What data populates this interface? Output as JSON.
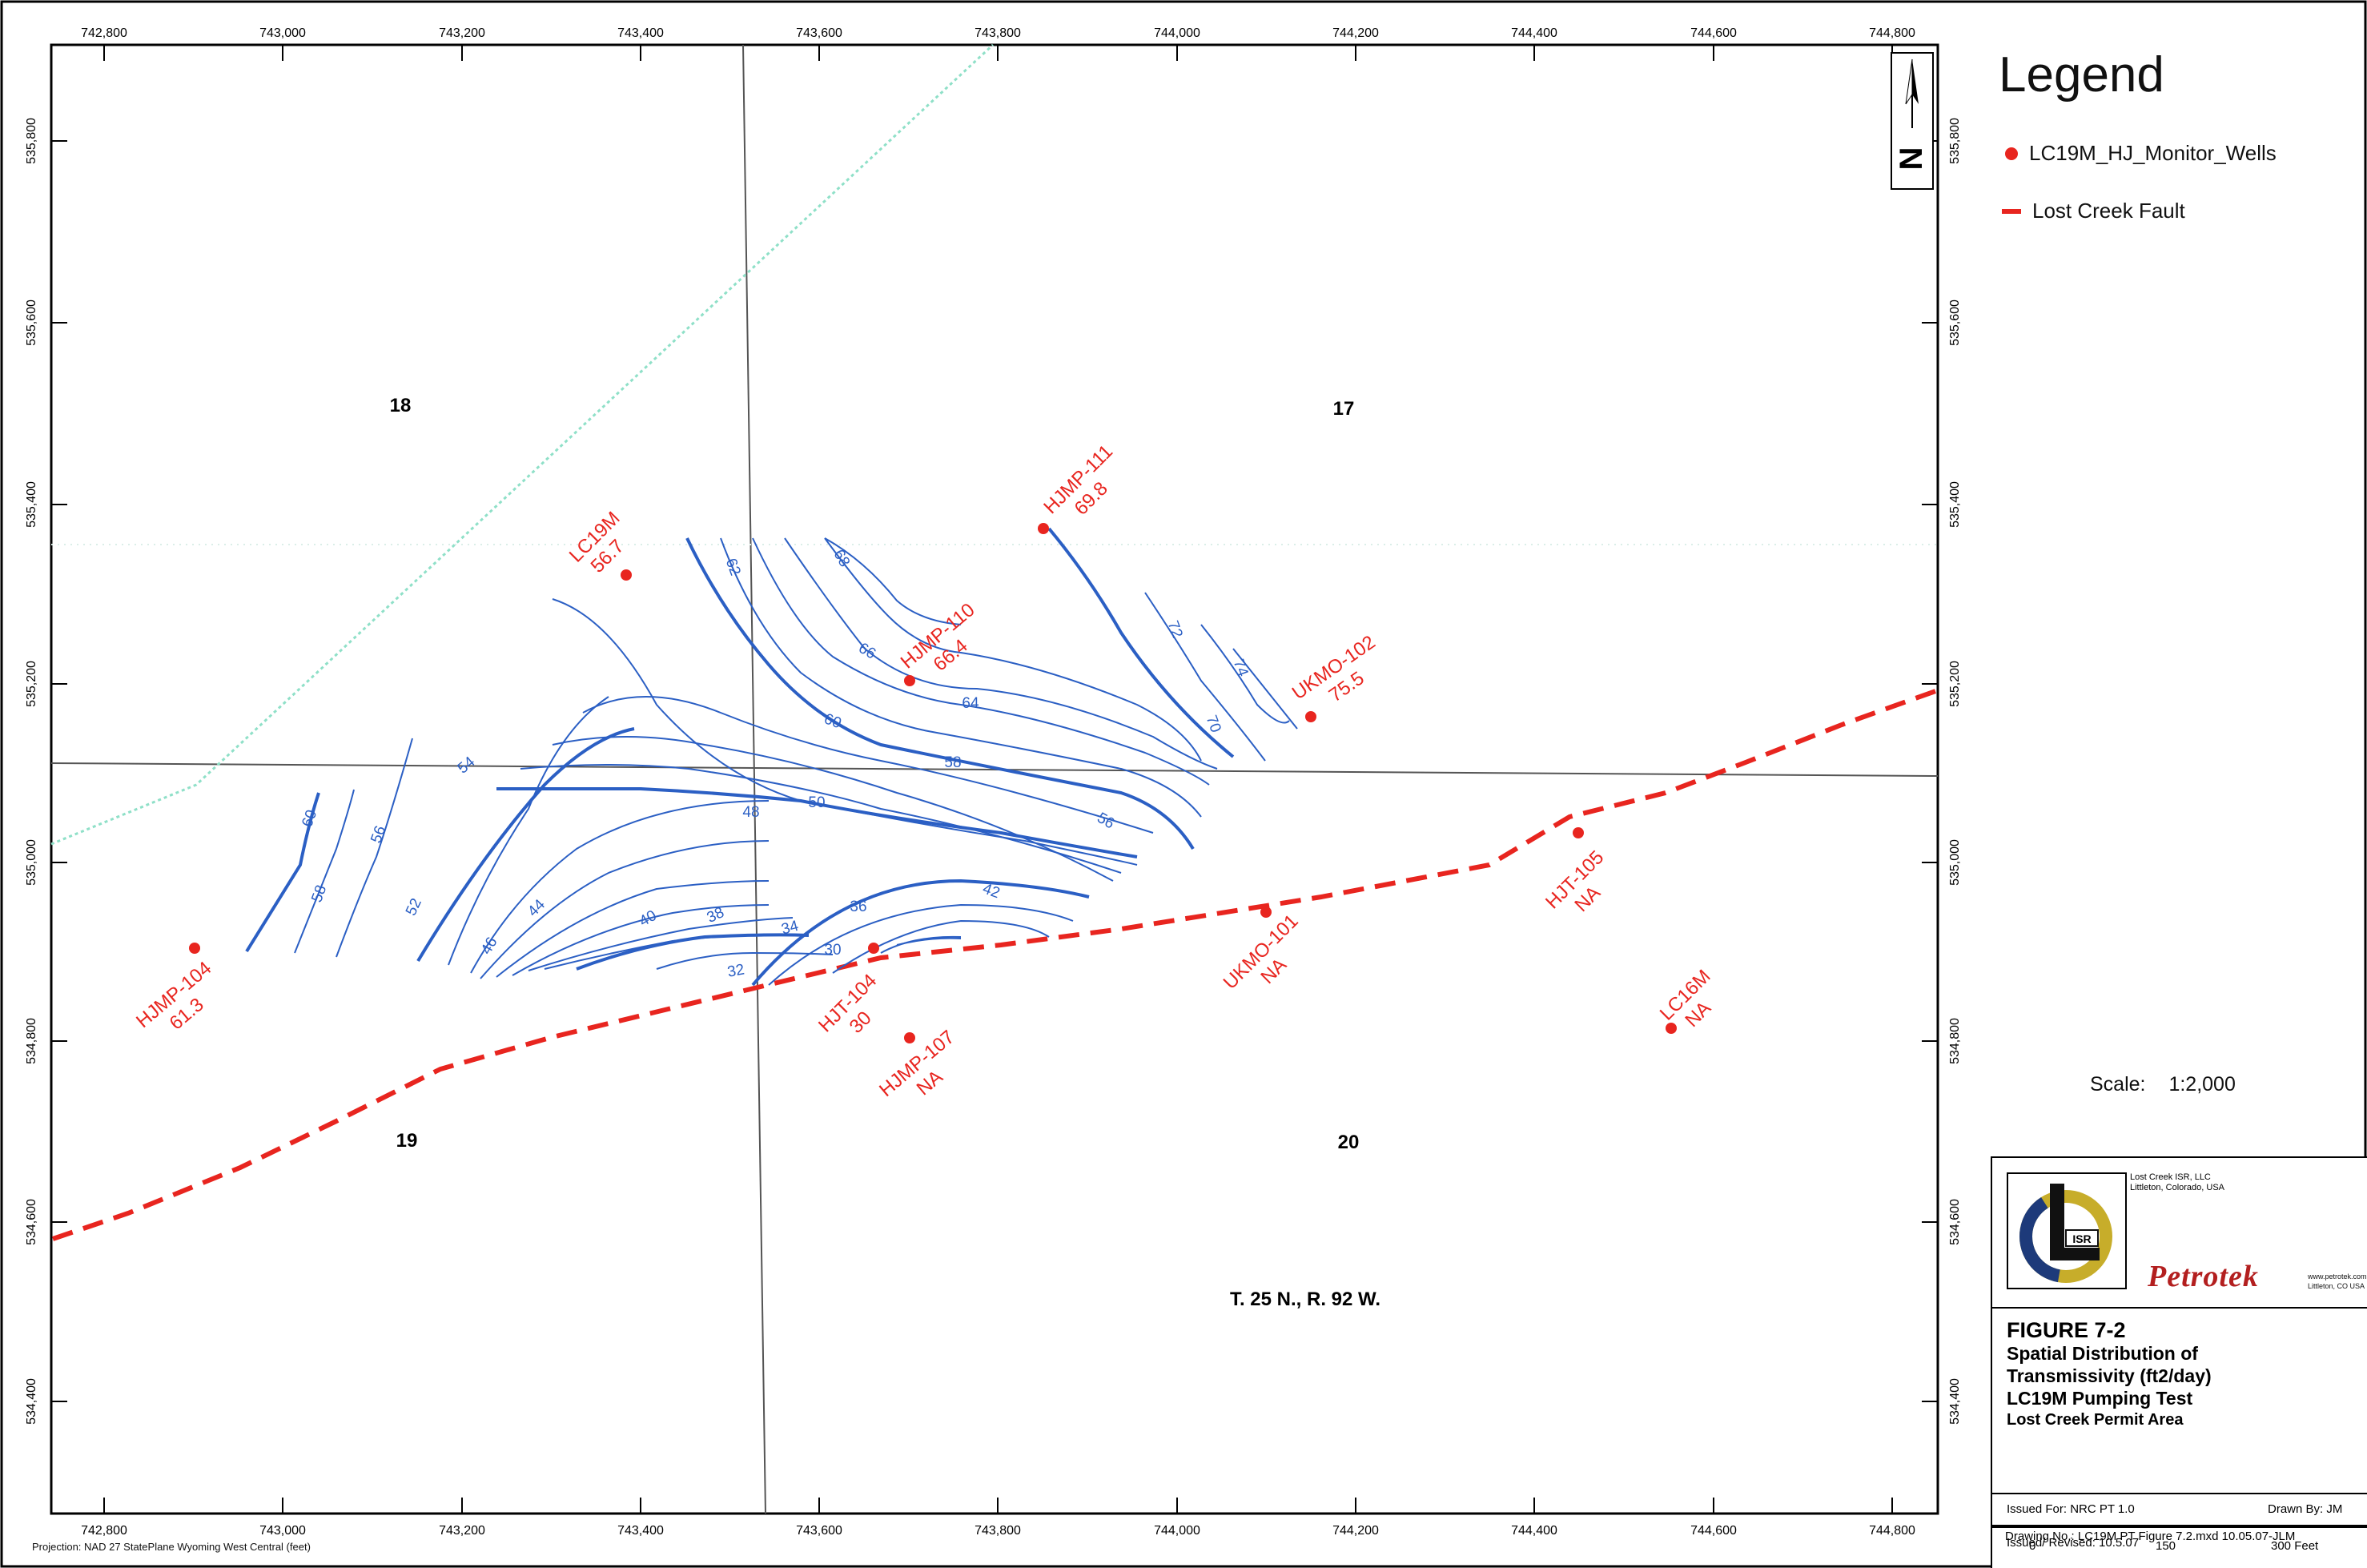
{
  "map": {
    "x_ticks": [
      "742,800",
      "743,000",
      "743,200",
      "743,400",
      "743,600",
      "743,800",
      "744,000",
      "744,200",
      "744,400",
      "744,600",
      "744,800"
    ],
    "y_ticks": [
      "535,800",
      "535,600",
      "535,400",
      "535,200",
      "535,000",
      "534,800",
      "534,600",
      "534,400"
    ],
    "sections": [
      "18",
      "17",
      "19",
      "20"
    ],
    "township": "T. 25 N., R. 92 W.",
    "north_letter": "N",
    "projection": "Projection: NAD 27 StatePlane Wyoming West Central (feet)",
    "wells": [
      {
        "name": "LC19M",
        "value": "56.7"
      },
      {
        "name": "HJMP-111",
        "value": "69.8"
      },
      {
        "name": "HJMP-110",
        "value": "66.4"
      },
      {
        "name": "UKMO-102",
        "value": "75.5"
      },
      {
        "name": "HJT-105",
        "value": "NA"
      },
      {
        "name": "HJMP-104",
        "value": "61.3"
      },
      {
        "name": "HJT-104",
        "value": "30"
      },
      {
        "name": "HJMP-107",
        "value": "NA"
      },
      {
        "name": "UKMO-101",
        "value": "NA"
      },
      {
        "name": "LC16M",
        "value": "NA"
      }
    ],
    "contour_labels": [
      "60",
      "58",
      "56",
      "52",
      "54",
      "46",
      "44",
      "40",
      "38",
      "48",
      "50",
      "34",
      "36",
      "30",
      "32",
      "42",
      "62",
      "68",
      "66",
      "60",
      "64",
      "58",
      "56",
      "72",
      "74",
      "70"
    ],
    "colors": {
      "contour": "#2b5fc4",
      "fault": "#e8251f",
      "well": "#e8251f",
      "road": "#8fe0c8"
    }
  },
  "legend": {
    "title": "Legend",
    "items": [
      {
        "label": "LC19M_HJ_Monitor_Wells",
        "symbol": "red-dot"
      },
      {
        "label": "Lost Creek Fault",
        "symbol": "red-dash"
      }
    ]
  },
  "scale": {
    "label": "Scale:",
    "value": "1:2,000",
    "bar_labels": [
      "0",
      "150",
      "300 Feet"
    ]
  },
  "title_block": {
    "company": "Lost Creek ISR, LLC",
    "company_location": "Littleton, Colorado, USA",
    "logo_text": "ISR",
    "consultant": "Petrotek",
    "consultant_url": "www.petrotek.com",
    "consultant_location": "Littleton, CO USA",
    "figure_no": "FIGURE 7-2",
    "title_line1": "Spatial Distribution of",
    "title_line2": "Transmissivity (ft2/day)",
    "title_line3": "LC19M Pumping Test",
    "subtitle": "Lost Creek Permit Area",
    "issued_for": "Issued For: NRC PT 1.0",
    "drawn_by": "Drawn By: JM",
    "issued_revised": "Issued/ Revised: 10.5.07",
    "drawing_no": "Drawing No.: LC19M PT Figure 7.2.mxd  10.05.07-JLM"
  }
}
